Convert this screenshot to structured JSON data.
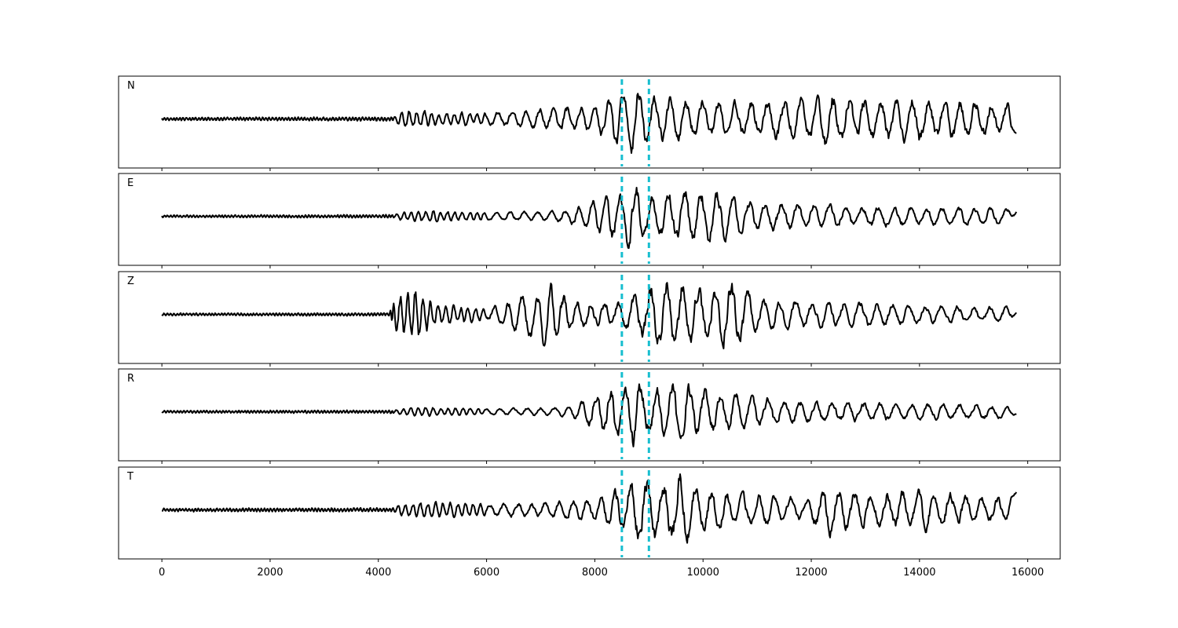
{
  "chart_data": {
    "type": "line",
    "title": "",
    "xlabel": "",
    "ylabel": "",
    "xlim": [
      -800,
      16600
    ],
    "x_ticks": [
      0,
      2000,
      4000,
      6000,
      8000,
      10000,
      12000,
      14000,
      16000
    ],
    "x_tick_labels": [
      "0",
      "2000",
      "4000",
      "6000",
      "8000",
      "10000",
      "12000",
      "14000",
      "16000"
    ],
    "x_range": [
      0,
      15800
    ],
    "grid": false,
    "pick_lines_x": [
      8500,
      9000
    ],
    "colors": {
      "trace": "#000000",
      "pick_line": "#17becf"
    },
    "panels": [
      {
        "label": "N",
        "envelope": [
          [
            0,
            0.04
          ],
          [
            4300,
            0.05
          ],
          [
            4400,
            0.2
          ],
          [
            4800,
            0.25
          ],
          [
            5000,
            0.18
          ],
          [
            6000,
            0.15
          ],
          [
            6800,
            0.25
          ],
          [
            7500,
            0.3
          ],
          [
            8000,
            0.35
          ],
          [
            8500,
            0.7
          ],
          [
            8700,
            0.95
          ],
          [
            9000,
            0.6
          ],
          [
            10000,
            0.45
          ],
          [
            11000,
            0.45
          ],
          [
            12000,
            0.55
          ],
          [
            12300,
            0.7
          ],
          [
            13000,
            0.5
          ],
          [
            14000,
            0.6
          ],
          [
            15000,
            0.45
          ],
          [
            15800,
            0.4
          ]
        ],
        "end_value": -0.35
      },
      {
        "label": "E",
        "envelope": [
          [
            0,
            0.03
          ],
          [
            4300,
            0.04
          ],
          [
            4400,
            0.1
          ],
          [
            4800,
            0.15
          ],
          [
            6000,
            0.1
          ],
          [
            7500,
            0.15
          ],
          [
            8500,
            0.7
          ],
          [
            8700,
            0.95
          ],
          [
            9000,
            0.5
          ],
          [
            9700,
            0.75
          ],
          [
            10000,
            0.7
          ],
          [
            11000,
            0.4
          ],
          [
            12000,
            0.3
          ],
          [
            13000,
            0.3
          ],
          [
            14000,
            0.2
          ],
          [
            15000,
            0.25
          ],
          [
            15800,
            0.2
          ]
        ],
        "end_value": 0.12
      },
      {
        "label": "Z",
        "envelope": [
          [
            0,
            0.03
          ],
          [
            4200,
            0.04
          ],
          [
            4300,
            0.5
          ],
          [
            4700,
            0.65
          ],
          [
            5000,
            0.3
          ],
          [
            6000,
            0.15
          ],
          [
            6800,
            0.55
          ],
          [
            7200,
            0.85
          ],
          [
            7500,
            0.4
          ],
          [
            8000,
            0.3
          ],
          [
            8500,
            0.35
          ],
          [
            9000,
            0.75
          ],
          [
            9500,
            0.9
          ],
          [
            10000,
            0.7
          ],
          [
            10600,
            0.85
          ],
          [
            11000,
            0.4
          ],
          [
            12000,
            0.35
          ],
          [
            13000,
            0.3
          ],
          [
            15000,
            0.2
          ],
          [
            15800,
            0.2
          ]
        ],
        "end_value": 0.05
      },
      {
        "label": "R",
        "envelope": [
          [
            0,
            0.03
          ],
          [
            4300,
            0.04
          ],
          [
            4400,
            0.1
          ],
          [
            4800,
            0.12
          ],
          [
            6000,
            0.08
          ],
          [
            7500,
            0.12
          ],
          [
            8500,
            0.75
          ],
          [
            8700,
            0.95
          ],
          [
            9000,
            0.6
          ],
          [
            9700,
            0.75
          ],
          [
            10000,
            0.55
          ],
          [
            11000,
            0.4
          ],
          [
            12000,
            0.25
          ],
          [
            13000,
            0.25
          ],
          [
            14000,
            0.2
          ],
          [
            15000,
            0.2
          ],
          [
            15800,
            0.15
          ]
        ],
        "end_value": -0.05
      },
      {
        "label": "T",
        "envelope": [
          [
            0,
            0.04
          ],
          [
            4300,
            0.05
          ],
          [
            4400,
            0.15
          ],
          [
            5000,
            0.2
          ],
          [
            6000,
            0.15
          ],
          [
            7000,
            0.2
          ],
          [
            8000,
            0.3
          ],
          [
            8500,
            0.55
          ],
          [
            8800,
            0.9
          ],
          [
            9000,
            0.8
          ],
          [
            9600,
            0.9
          ],
          [
            10000,
            0.5
          ],
          [
            11000,
            0.4
          ],
          [
            12000,
            0.3
          ],
          [
            12300,
            0.65
          ],
          [
            13000,
            0.4
          ],
          [
            14000,
            0.55
          ],
          [
            15000,
            0.35
          ],
          [
            15800,
            0.3
          ]
        ],
        "end_value": 0.45
      }
    ]
  }
}
